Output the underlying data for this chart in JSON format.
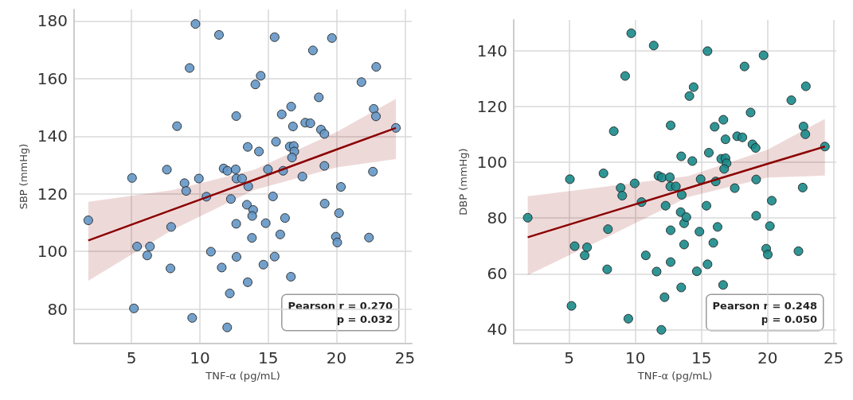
{
  "chart_data": [
    {
      "type": "scatter",
      "xlabel": "TNF-α (pg/mL)",
      "ylabel": "SBP (mmHg)",
      "xlim": [
        0.8,
        25.5
      ],
      "ylim": [
        68,
        184
      ],
      "xticks": [
        5,
        10,
        15,
        20,
        25
      ],
      "yticks": [
        80,
        100,
        120,
        140,
        160,
        180
      ],
      "grid": true,
      "marker": "circle",
      "annotations": [
        "Pearson r = 0.270\np = 0.032"
      ],
      "series": [
        {
          "color": "#6497c6",
          "x": [
            9.68,
            11.4,
            9.25,
            14.06,
            12.66,
            8.33,
            13.5,
            5.04,
            7.59,
            8.88,
            9.0,
            9.93,
            10.48,
            11.74,
            12.02,
            12.62,
            12.68,
            13.09,
            13.54,
            12.27,
            13.44,
            13.9,
            13.83,
            12.66,
            13.81,
            1.84,
            7.9,
            5.41,
            6.35,
            6.15,
            10.81,
            12.68,
            7.85,
            11.6,
            13.5,
            12.19,
            5.18,
            9.44,
            12.0,
            15.47,
            19.66,
            18.27,
            22.9,
            21.82,
            18.7,
            16.68,
            15.99,
            22.72,
            22.88,
            16.81,
            17.71,
            18.08,
            18.86,
            19.11,
            24.34,
            14.32,
            15.57,
            16.58,
            16.87,
            16.91,
            16.74,
            19.11,
            14.98,
            16.09,
            17.5,
            22.66,
            20.32,
            15.35,
            19.13,
            20.18,
            16.23,
            14.82,
            15.88,
            19.95,
            20.05,
            22.37,
            15.47,
            14.65,
            16.66,
            14.45
          ],
          "values": [
            179,
            175.2,
            163.7,
            158,
            147,
            143.5,
            136.3,
            125.5,
            128.4,
            123.7,
            121,
            125.3,
            119,
            128.8,
            128,
            128.5,
            125.3,
            125.3,
            122.6,
            118.2,
            116.2,
            114.4,
            112.3,
            109.6,
            104.7,
            110.8,
            108.5,
            101.7,
            101.7,
            98.6,
            99.9,
            98.1,
            94.1,
            94.4,
            89.3,
            85.4,
            80.2,
            76.9,
            73.6,
            174.4,
            174.1,
            169.8,
            164.1,
            158.8,
            153.5,
            150.3,
            147.6,
            149.5,
            146.9,
            143.4,
            144.7,
            144.5,
            142.3,
            140.8,
            142.9,
            134.7,
            138.1,
            136.4,
            136.6,
            134.7,
            132.6,
            129.7,
            128.5,
            128,
            126,
            127.7,
            122.4,
            119.1,
            116.6,
            113.3,
            111.6,
            109.8,
            105.9,
            105.1,
            103.1,
            104.8,
            98.2,
            95.4,
            91.2,
            161
          ]
        },
        {
          "type": "line",
          "marker": "none",
          "color": "#8b0000",
          "x": [
            1.84,
            8,
            14,
            20,
            24.34
          ],
          "values": [
            103.8,
            114.5,
            124.9,
            135.4,
            142.9
          ],
          "lower": [
            89.8,
            107.5,
            121.4,
            129.2,
            132.1
          ],
          "upper": [
            117.2,
            121.3,
            128.4,
            141.5,
            153
          ]
        }
      ]
    },
    {
      "type": "scatter",
      "xlabel": "TNF-α (pg/mL)",
      "ylabel": "DBP (mmHg)",
      "xlim": [
        0.8,
        25.2
      ],
      "ylim": [
        35,
        151
      ],
      "xticks": [
        5,
        10,
        15,
        20,
        25
      ],
      "yticks": [
        40,
        60,
        80,
        100,
        120,
        140
      ],
      "grid": true,
      "marker": "circle",
      "annotations": [
        "Pearson r = 0.248\np = 0.050"
      ],
      "series": [
        {
          "color": "#1a8a8a",
          "x": [
            9.69,
            11.39,
            9.23,
            8.37,
            12.67,
            13.47,
            5.05,
            7.59,
            8.89,
            9.01,
            9.95,
            10.47,
            11.75,
            12.01,
            12.61,
            12.65,
            13.07,
            13.51,
            12.29,
            13.43,
            13.69,
            12.67,
            13.69,
            1.86,
            7.93,
            5.41,
            6.35,
            6.17,
            10.79,
            12.67,
            7.87,
            11.61,
            13.47,
            12.21,
            5.17,
            9.47,
            11.97,
            15.46,
            19.7,
            18.26,
            22.9,
            14.41,
            14.09,
            21.8,
            18.72,
            16.66,
            16.0,
            22.72,
            22.86,
            16.82,
            17.7,
            18.1,
            18.86,
            19.1,
            24.34,
            14.31,
            15.56,
            16.5,
            16.82,
            16.9,
            16.72,
            14.94,
            16.08,
            19.14,
            17.52,
            22.66,
            15.38,
            20.32,
            19.14,
            20.18,
            16.22,
            14.85,
            15.9,
            19.9,
            20.02,
            22.34,
            15.46,
            14.65,
            16.64,
            13.86
          ],
          "values": [
            146.2,
            141.8,
            130.9,
            111.1,
            113.2,
            102.1,
            93.9,
            96,
            90.8,
            88,
            92.4,
            85.7,
            95.1,
            94.5,
            94.6,
            91.3,
            91.3,
            88.3,
            84.4,
            82.1,
            78.1,
            75.6,
            70.5,
            80.1,
            76,
            69.9,
            69.5,
            66.6,
            66.6,
            64.2,
            61.6,
            60.8,
            55.1,
            51.6,
            48.5,
            43.9,
            39.9,
            139.8,
            138.3,
            134.3,
            127.2,
            126.9,
            123.7,
            122.2,
            117.8,
            115.2,
            112.7,
            112.8,
            110,
            108.2,
            109.3,
            108.9,
            106.4,
            105.1,
            105.6,
            100.4,
            103.4,
            101.2,
            101.4,
            99.6,
            97.6,
            93.9,
            93.1,
            93.8,
            90.7,
            90.9,
            84.4,
            86.2,
            80.8,
            77.1,
            76.8,
            75.1,
            71.1,
            69,
            66.9,
            68.1,
            63.4,
            60.9,
            56,
            80.3
          ]
        },
        {
          "type": "line",
          "marker": "none",
          "color": "#8b0000",
          "x": [
            1.86,
            8,
            14,
            20,
            24.34
          ],
          "values": [
            73.1,
            82,
            90.7,
            99.4,
            105.6
          ],
          "lower": [
            59.5,
            73.5,
            87.5,
            94.5,
            95.2
          ],
          "upper": [
            87.8,
            91.4,
            95,
            104.5,
            115.5
          ]
        }
      ]
    }
  ]
}
